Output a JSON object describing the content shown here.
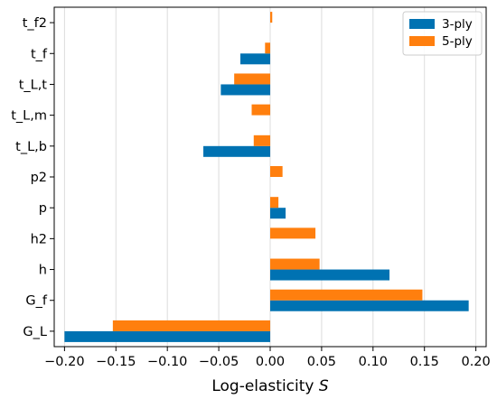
{
  "chart_data": {
    "type": "bar",
    "orientation": "horizontal",
    "title": "",
    "xlabel_prefix": "Log-elasticity ",
    "xlabel_symbol": "S",
    "ylabel": "",
    "categories": [
      "G_L",
      "G_f",
      "h",
      "h2",
      "p",
      "p2",
      "t_L,b",
      "t_L,m",
      "t_L,t",
      "t_f",
      "t_f2"
    ],
    "xlim": [
      -0.21,
      0.21
    ],
    "xticks": [
      -0.2,
      -0.15,
      -0.1,
      -0.05,
      0.0,
      0.05,
      0.1,
      0.15,
      0.2
    ],
    "xtick_labels": [
      "−0.20",
      "−0.15",
      "−0.10",
      "−0.05",
      "0.00",
      "0.05",
      "0.10",
      "0.15",
      "0.20"
    ],
    "grid": "vertical",
    "legend_position": "top-right",
    "series": [
      {
        "name": "3-ply",
        "color": "#0072b2",
        "values": [
          -0.2,
          0.193,
          0.116,
          0.0,
          0.015,
          0.0,
          -0.065,
          0.0,
          -0.048,
          -0.029,
          0.0
        ]
      },
      {
        "name": "5-ply",
        "color": "#ff7f0e",
        "values": [
          -0.153,
          0.148,
          0.048,
          0.044,
          0.008,
          0.012,
          -0.016,
          -0.018,
          -0.035,
          -0.005,
          0.002
        ]
      }
    ]
  }
}
